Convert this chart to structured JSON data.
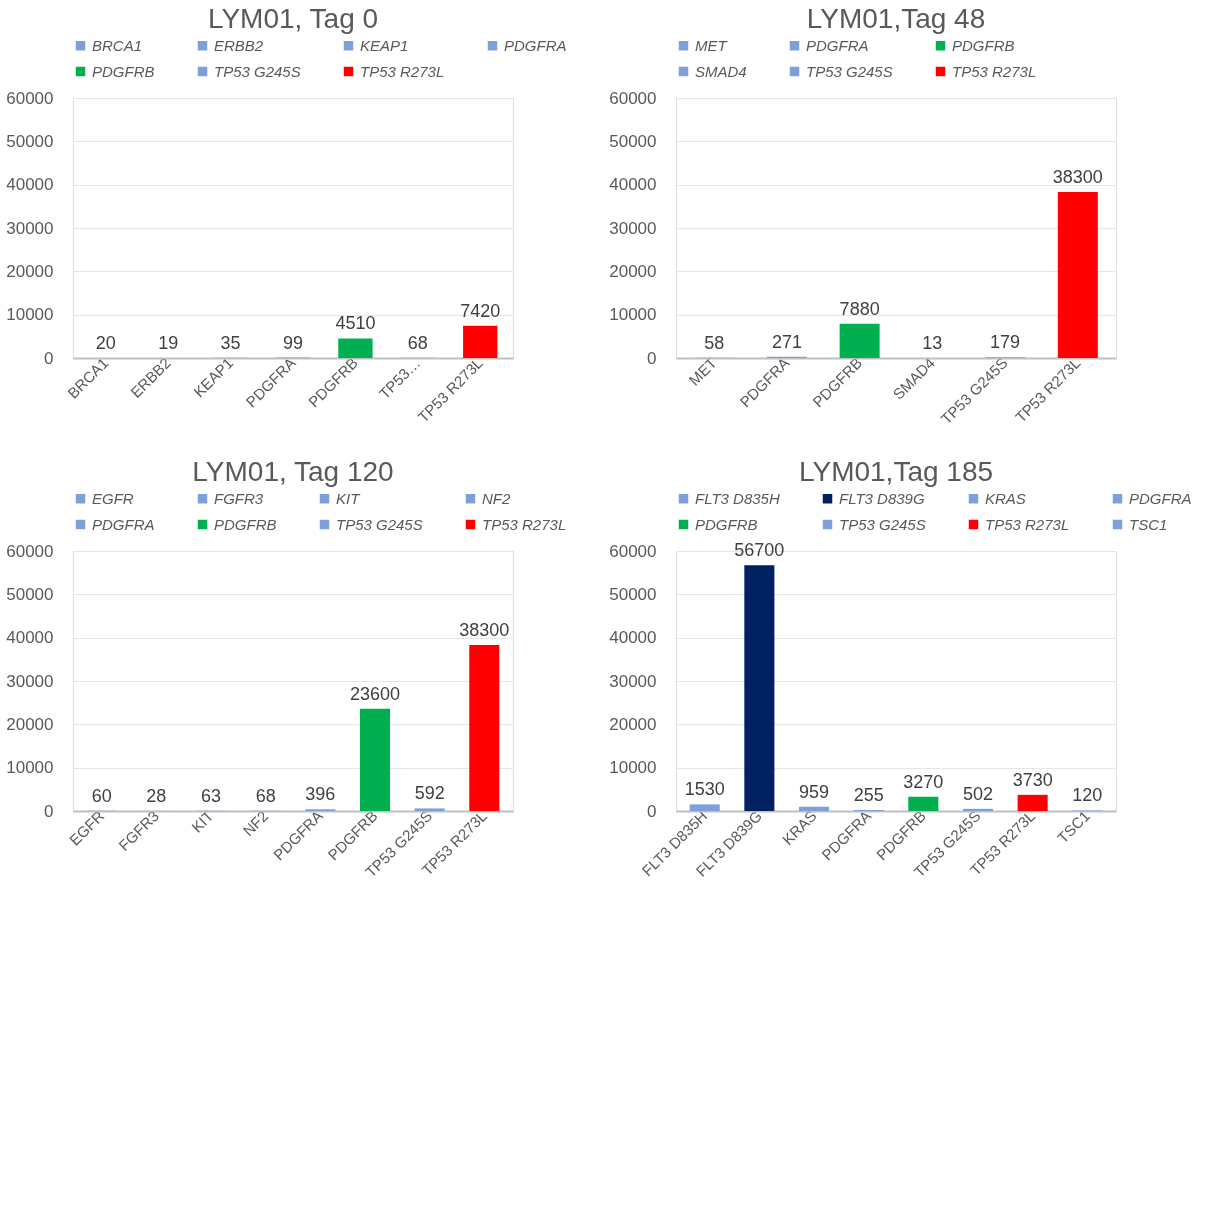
{
  "chart_data": [
    {
      "type": "bar",
      "title": "LYM01, Tag 0",
      "categories": [
        "BRCA1",
        "ERBB2",
        "KEAP1",
        "PDGFRA",
        "PDGFRB",
        "TP53…",
        "TP53 R273L"
      ],
      "ylim": [
        0,
        60000
      ],
      "yticks": [
        0,
        10000,
        20000,
        30000,
        40000,
        50000,
        60000
      ],
      "grid": "y",
      "legend": "top",
      "data_labels": true,
      "series": [
        {
          "name": "BRCA1",
          "color": "#7f9fdb",
          "values": [
            20,
            null,
            null,
            null,
            null,
            null,
            null
          ]
        },
        {
          "name": "ERBB2",
          "color": "#7f9fdb",
          "values": [
            null,
            19,
            null,
            null,
            null,
            null,
            null
          ]
        },
        {
          "name": "KEAP1",
          "color": "#7f9fdb",
          "values": [
            null,
            null,
            35,
            null,
            null,
            null,
            null
          ]
        },
        {
          "name": "PDGFRA",
          "color": "#7f9fdb",
          "values": [
            null,
            null,
            null,
            99,
            null,
            null,
            null
          ]
        },
        {
          "name": "PDGFRB",
          "color": "#00b050",
          "values": [
            null,
            null,
            null,
            null,
            4510,
            null,
            null
          ]
        },
        {
          "name": "TP53 G245S",
          "color": "#7f9fdb",
          "values": [
            null,
            null,
            null,
            null,
            null,
            68,
            null
          ]
        },
        {
          "name": "TP53 R273L",
          "color": "#ff0000",
          "values": [
            null,
            null,
            null,
            null,
            null,
            null,
            7420
          ]
        }
      ]
    },
    {
      "type": "bar",
      "title": "LYM01,Tag 48",
      "categories": [
        "MET",
        "PDGFRA",
        "PDGFRB",
        "SMAD4",
        "TP53 G245S",
        "TP53 R273L"
      ],
      "ylim": [
        0,
        60000
      ],
      "yticks": [
        0,
        10000,
        20000,
        30000,
        40000,
        50000,
        60000
      ],
      "grid": "y",
      "legend": "top",
      "data_labels": true,
      "series": [
        {
          "name": "MET",
          "color": "#7f9fdb",
          "values": [
            58,
            null,
            null,
            null,
            null,
            null
          ]
        },
        {
          "name": "PDGFRA",
          "color": "#7f9fdb",
          "values": [
            null,
            271,
            null,
            null,
            null,
            null
          ]
        },
        {
          "name": "PDGFRB",
          "color": "#00b050",
          "values": [
            null,
            null,
            7880,
            null,
            null,
            null
          ]
        },
        {
          "name": "SMAD4",
          "color": "#7f9fdb",
          "values": [
            null,
            null,
            null,
            13,
            null,
            null
          ]
        },
        {
          "name": "TP53 G245S",
          "color": "#7f9fdb",
          "values": [
            null,
            null,
            null,
            null,
            179,
            null
          ]
        },
        {
          "name": "TP53 R273L",
          "color": "#ff0000",
          "values": [
            null,
            null,
            null,
            null,
            null,
            38300
          ]
        }
      ]
    },
    {
      "type": "bar",
      "title": "LYM01, Tag 120",
      "categories": [
        "EGFR",
        "FGFR3",
        "KIT",
        "NF2",
        "PDGFRA",
        "PDGFRB",
        "TP53 G245S",
        "TP53 R273L"
      ],
      "ylim": [
        0,
        60000
      ],
      "yticks": [
        0,
        10000,
        20000,
        30000,
        40000,
        50000,
        60000
      ],
      "grid": "y",
      "legend": "top",
      "data_labels": true,
      "series": [
        {
          "name": "EGFR",
          "color": "#7f9fdb",
          "values": [
            60,
            null,
            null,
            null,
            null,
            null,
            null,
            null
          ]
        },
        {
          "name": "FGFR3",
          "color": "#7f9fdb",
          "values": [
            null,
            28,
            null,
            null,
            null,
            null,
            null,
            null
          ]
        },
        {
          "name": "KIT",
          "color": "#7f9fdb",
          "values": [
            null,
            null,
            63,
            null,
            null,
            null,
            null,
            null
          ]
        },
        {
          "name": "NF2",
          "color": "#7f9fdb",
          "values": [
            null,
            null,
            null,
            68,
            null,
            null,
            null,
            null
          ]
        },
        {
          "name": "PDGFRA",
          "color": "#7f9fdb",
          "values": [
            null,
            null,
            null,
            null,
            396,
            null,
            null,
            null
          ]
        },
        {
          "name": "PDGFRB",
          "color": "#00b050",
          "values": [
            null,
            null,
            null,
            null,
            null,
            23600,
            null,
            null
          ]
        },
        {
          "name": "TP53 G245S",
          "color": "#7f9fdb",
          "values": [
            null,
            null,
            null,
            null,
            null,
            null,
            592,
            null
          ]
        },
        {
          "name": "TP53 R273L",
          "color": "#ff0000",
          "values": [
            null,
            null,
            null,
            null,
            null,
            null,
            null,
            38300
          ]
        }
      ]
    },
    {
      "type": "bar",
      "title": "LYM01,Tag 185",
      "categories": [
        "FLT3 D835H",
        "FLT3 D839G",
        "KRAS",
        "PDGFRA",
        "PDGFRB",
        "TP53 G245S",
        "TP53 R273L",
        "TSC1"
      ],
      "ylim": [
        0,
        60000
      ],
      "yticks": [
        0,
        10000,
        20000,
        30000,
        40000,
        50000,
        60000
      ],
      "grid": "y",
      "legend": "top",
      "data_labels": true,
      "series": [
        {
          "name": "FLT3 D835H",
          "color": "#7f9fdb",
          "values": [
            1530,
            null,
            null,
            null,
            null,
            null,
            null,
            null
          ]
        },
        {
          "name": "FLT3 D839G",
          "color": "#002060",
          "values": [
            null,
            56700,
            null,
            null,
            null,
            null,
            null,
            null
          ]
        },
        {
          "name": "KRAS",
          "color": "#7f9fdb",
          "values": [
            null,
            null,
            959,
            null,
            null,
            null,
            null,
            null
          ]
        },
        {
          "name": "PDGFRA",
          "color": "#7f9fdb",
          "values": [
            null,
            null,
            null,
            255,
            null,
            null,
            null,
            null
          ]
        },
        {
          "name": "PDGFRB",
          "color": "#00b050",
          "values": [
            null,
            null,
            null,
            null,
            3270,
            null,
            null,
            null
          ]
        },
        {
          "name": "TP53 G245S",
          "color": "#7f9fdb",
          "values": [
            null,
            null,
            null,
            null,
            null,
            502,
            null,
            null
          ]
        },
        {
          "name": "TP53 R273L",
          "color": "#ff0000",
          "values": [
            null,
            null,
            null,
            null,
            null,
            null,
            3730,
            null
          ]
        },
        {
          "name": "TSC1",
          "color": "#7f9fdb",
          "values": [
            null,
            null,
            null,
            null,
            null,
            null,
            null,
            120
          ]
        }
      ]
    }
  ]
}
